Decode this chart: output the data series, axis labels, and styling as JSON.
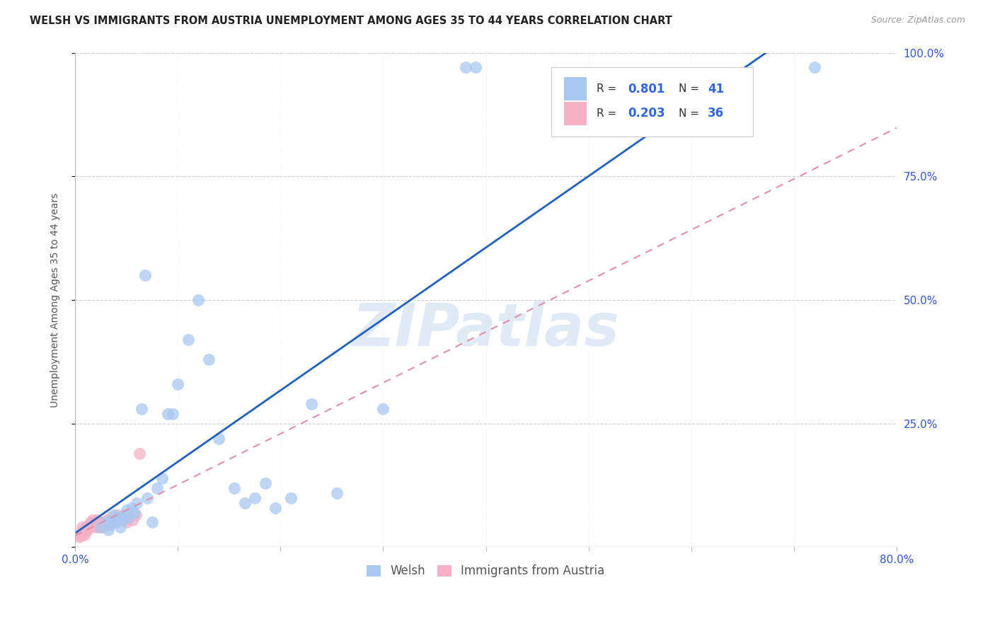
{
  "title": "WELSH VS IMMIGRANTS FROM AUSTRIA UNEMPLOYMENT AMONG AGES 35 TO 44 YEARS CORRELATION CHART",
  "source": "Source: ZipAtlas.com",
  "ylabel": "Unemployment Among Ages 35 to 44 years",
  "xlim": [
    0.0,
    0.8
  ],
  "ylim": [
    0.0,
    1.0
  ],
  "welsh_r": 0.801,
  "welsh_n": 41,
  "austria_r": 0.203,
  "austria_n": 36,
  "welsh_color": "#a8c8f0",
  "austria_color": "#f5b0c5",
  "regression_blue": "#2060c0",
  "regression_pink": "#e090aa",
  "watermark_color": "#ccdcee",
  "grid_color": "#cccccc",
  "welsh_x": [
    0.025,
    0.03,
    0.032,
    0.034,
    0.036,
    0.038,
    0.04,
    0.042,
    0.044,
    0.046,
    0.048,
    0.05,
    0.052,
    0.055,
    0.058,
    0.06,
    0.065,
    0.068,
    0.07,
    0.075,
    0.08,
    0.085,
    0.09,
    0.095,
    0.1,
    0.11,
    0.12,
    0.13,
    0.14,
    0.155,
    0.165,
    0.175,
    0.185,
    0.195,
    0.21,
    0.23,
    0.255,
    0.3,
    0.38,
    0.39,
    0.72
  ],
  "welsh_y": [
    0.04,
    0.05,
    0.035,
    0.045,
    0.055,
    0.065,
    0.05,
    0.06,
    0.04,
    0.055,
    0.065,
    0.075,
    0.06,
    0.08,
    0.07,
    0.09,
    0.28,
    0.55,
    0.1,
    0.05,
    0.12,
    0.14,
    0.27,
    0.27,
    0.33,
    0.42,
    0.5,
    0.38,
    0.22,
    0.12,
    0.09,
    0.1,
    0.13,
    0.08,
    0.1,
    0.29,
    0.11,
    0.28,
    0.97,
    0.97,
    0.97
  ],
  "austria_x": [
    0.004,
    0.005,
    0.006,
    0.007,
    0.008,
    0.009,
    0.01,
    0.011,
    0.012,
    0.013,
    0.014,
    0.015,
    0.016,
    0.017,
    0.018,
    0.019,
    0.02,
    0.021,
    0.022,
    0.023,
    0.025,
    0.027,
    0.029,
    0.031,
    0.033,
    0.035,
    0.037,
    0.039,
    0.041,
    0.044,
    0.047,
    0.05,
    0.053,
    0.056,
    0.059,
    0.063
  ],
  "austria_y": [
    0.02,
    0.025,
    0.03,
    0.04,
    0.035,
    0.025,
    0.03,
    0.04,
    0.035,
    0.045,
    0.04,
    0.05,
    0.045,
    0.055,
    0.05,
    0.04,
    0.045,
    0.055,
    0.05,
    0.04,
    0.05,
    0.04,
    0.045,
    0.055,
    0.05,
    0.06,
    0.05,
    0.055,
    0.065,
    0.06,
    0.055,
    0.05,
    0.06,
    0.055,
    0.065,
    0.19
  ]
}
